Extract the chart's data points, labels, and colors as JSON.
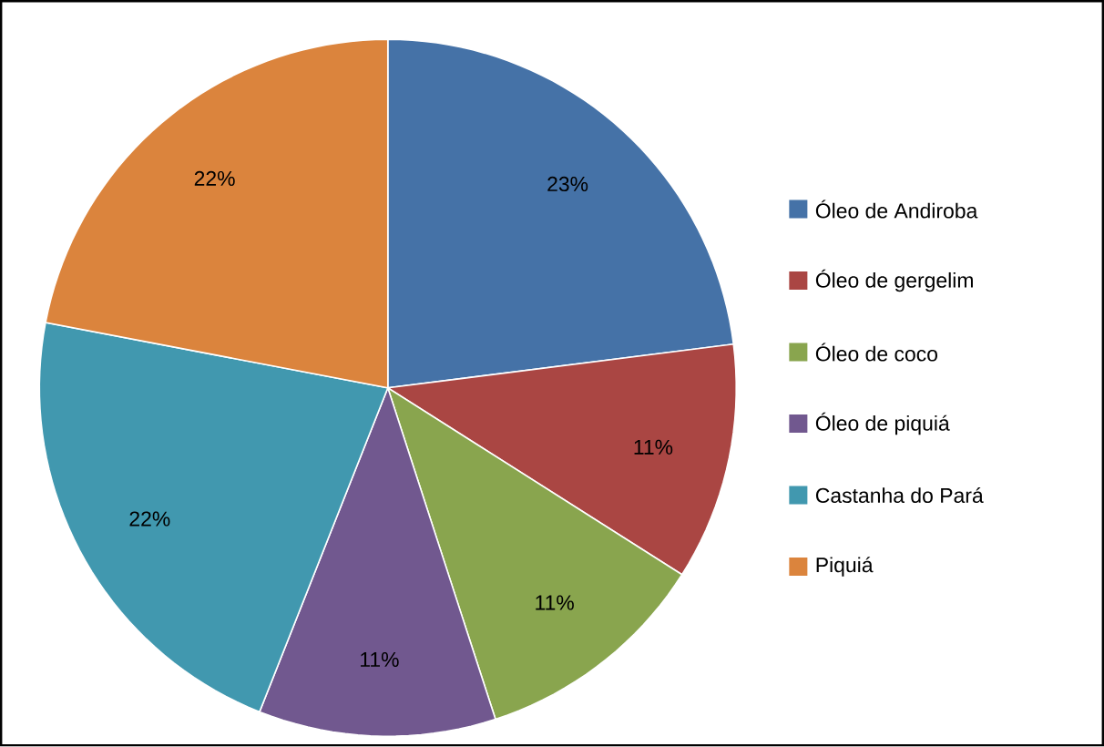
{
  "chart_data": {
    "type": "pie",
    "categories": [
      "Óleo de Andiroba",
      "Óleo de gergelim",
      "Óleo de coco",
      "Óleo de piquiá",
      "Castanha do Pará",
      "Piquiá"
    ],
    "values": [
      23,
      11,
      11,
      11,
      22,
      22
    ],
    "value_labels": [
      "23%",
      "11%",
      "11%",
      "11%",
      "22%",
      "22%"
    ],
    "colors": [
      "#4572a7",
      "#aa4643",
      "#89a54e",
      "#71588f",
      "#4198af",
      "#db843d"
    ],
    "legend": "right"
  }
}
